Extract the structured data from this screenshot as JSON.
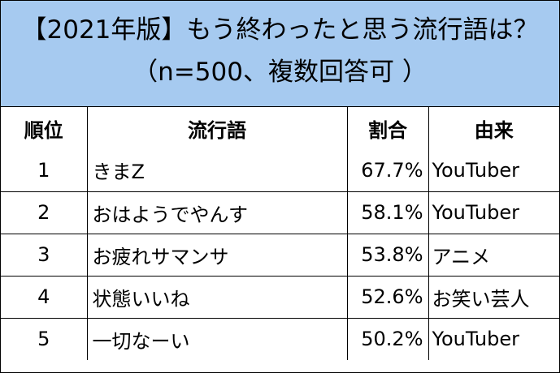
{
  "header": {
    "title": "【2021年版】もう終わったと思う流行語は？",
    "subtitle": "（n=500、複数回答可 ）"
  },
  "table": {
    "columns": [
      "順位",
      "流行語",
      "割合",
      "由来"
    ],
    "rows": [
      [
        "1",
        "きまZ",
        "67.7%",
        "YouTuber"
      ],
      [
        "2",
        "おはようでやんす",
        "58.1%",
        "YouTuber"
      ],
      [
        "3",
        "お疲れサマンサ",
        "53.8%",
        "アニメ"
      ],
      [
        "4",
        "状態いいね",
        "52.6%",
        "お笑い芸人"
      ],
      [
        "5",
        "一切なーい",
        "50.2%",
        "YouTuber"
      ]
    ]
  }
}
